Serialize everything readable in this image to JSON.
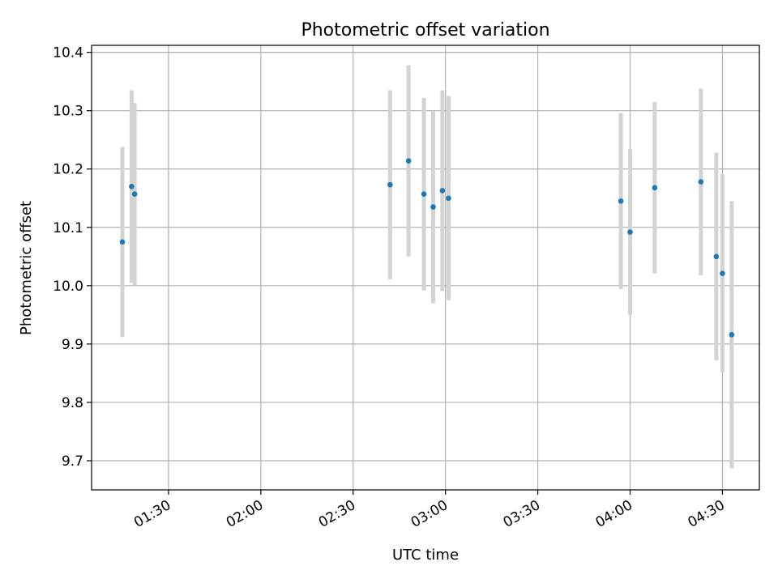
{
  "chart_data": {
    "type": "scatter",
    "title": "Photometric offset variation",
    "xlabel": "UTC time",
    "ylabel": "Photometric offset",
    "xlim": [
      "01:05",
      "04:42"
    ],
    "ylim": [
      9.65,
      10.412
    ],
    "grid": true,
    "x_ticks": [
      "01:30",
      "02:00",
      "02:30",
      "03:00",
      "03:30",
      "04:00",
      "04:30"
    ],
    "y_ticks": [
      "9.7",
      "9.8",
      "9.9",
      "10.0",
      "10.1",
      "10.2",
      "10.3",
      "10.4"
    ],
    "colors": {
      "points": "#1f77b4",
      "error_bars": "#d3d3d3",
      "grid": "#b0b0b0",
      "axes": "#000000"
    },
    "series": [
      {
        "points": [
          {
            "x": "01:15",
            "y": 10.075,
            "yerr": 0.163
          },
          {
            "x": "01:18",
            "y": 10.17,
            "yerr": 0.165
          },
          {
            "x": "01:19",
            "y": 10.157,
            "yerr": 0.156
          },
          {
            "x": "02:42",
            "y": 10.173,
            "yerr": 0.162
          },
          {
            "x": "02:48",
            "y": 10.214,
            "yerr": 0.164
          },
          {
            "x": "02:53",
            "y": 10.157,
            "yerr": 0.165
          },
          {
            "x": "02:56",
            "y": 10.135,
            "yerr": 0.165
          },
          {
            "x": "02:59",
            "y": 10.163,
            "yerr": 0.172
          },
          {
            "x": "03:01",
            "y": 10.15,
            "yerr": 0.175
          },
          {
            "x": "03:57",
            "y": 10.145,
            "yerr": 0.151
          },
          {
            "x": "04:00",
            "y": 10.092,
            "yerr": 0.142
          },
          {
            "x": "04:08",
            "y": 10.168,
            "yerr": 0.147
          },
          {
            "x": "04:23",
            "y": 10.178,
            "yerr": 0.16
          },
          {
            "x": "04:28",
            "y": 10.05,
            "yerr": 0.178
          },
          {
            "x": "04:30",
            "y": 10.021,
            "yerr": 0.17
          },
          {
            "x": "04:33",
            "y": 9.916,
            "yerr": 0.229
          }
        ]
      }
    ]
  }
}
